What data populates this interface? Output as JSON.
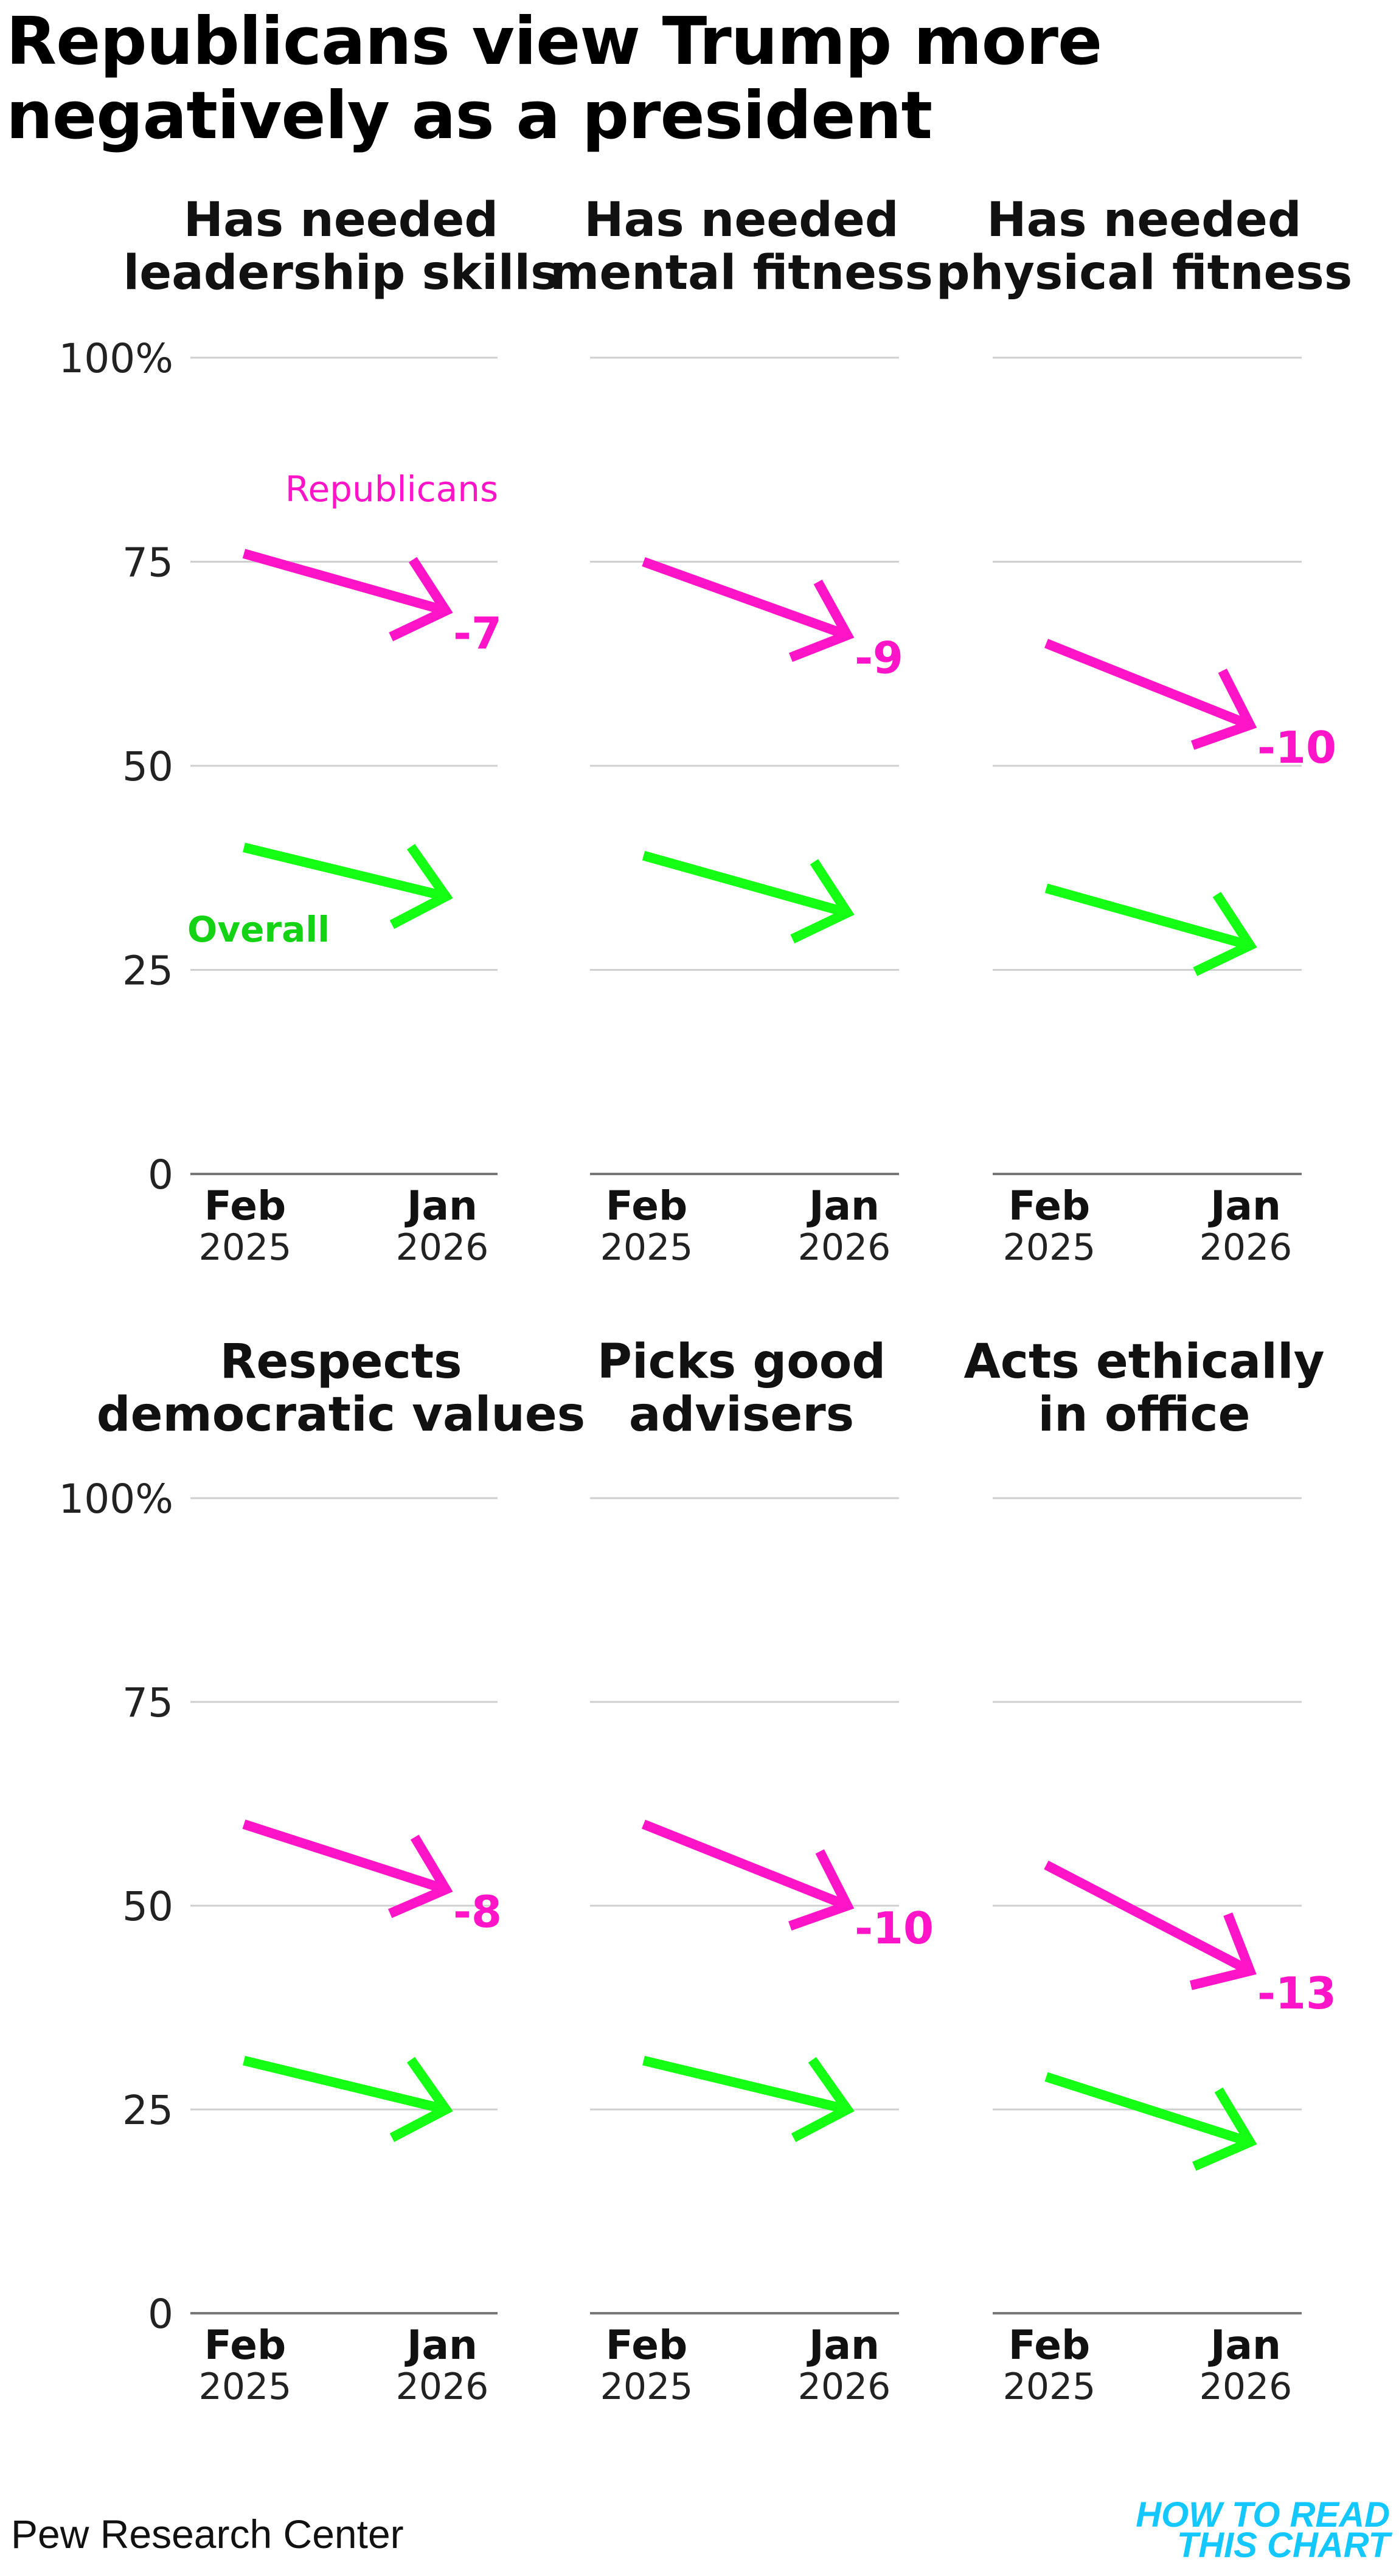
{
  "title": "Republicans view Trump more negatively as a president",
  "source": "Pew Research Center",
  "logo": {
    "line1": "HOW TO READ",
    "line2": "THIS CHART"
  },
  "colors": {
    "republicans": "#ff14c8",
    "overall": "#14ff14",
    "overall_label": "#14d214",
    "grid": "#cfcfcf",
    "axis": "#777777",
    "logo": "#14c8ff"
  },
  "chart_data": {
    "type": "line",
    "y_unit": "%",
    "ylim": [
      0,
      100
    ],
    "yticks": [
      0,
      25,
      50,
      75,
      100
    ],
    "ytick_labels": [
      "0",
      "25",
      "50",
      "75",
      "100%"
    ],
    "x_points": [
      {
        "month": "Feb",
        "year": "2025"
      },
      {
        "month": "Jan",
        "year": "2026"
      }
    ],
    "legend": {
      "republicans": "Republicans",
      "overall": "Overall"
    },
    "panels": [
      {
        "title": [
          "Has needed",
          "leadership skills"
        ],
        "republicans": [
          76,
          69
        ],
        "overall": [
          40,
          34
        ],
        "change": "-7"
      },
      {
        "title": [
          "Has needed",
          "mental fitness"
        ],
        "republicans": [
          75,
          66
        ],
        "overall": [
          39,
          32
        ],
        "change": "-9"
      },
      {
        "title": [
          "Has needed",
          "physical fitness"
        ],
        "republicans": [
          65,
          55
        ],
        "overall": [
          35,
          28
        ],
        "change": "-10"
      },
      {
        "title": [
          "Respects",
          "democratic values"
        ],
        "republicans": [
          60,
          52
        ],
        "overall": [
          31,
          25
        ],
        "change": "-8"
      },
      {
        "title": [
          "Picks good",
          "advisers"
        ],
        "republicans": [
          60,
          50
        ],
        "overall": [
          31,
          25
        ],
        "change": "-10"
      },
      {
        "title": [
          "Acts ethically",
          "in office"
        ],
        "republicans": [
          55,
          42
        ],
        "overall": [
          29,
          21
        ],
        "change": "-13"
      }
    ]
  }
}
